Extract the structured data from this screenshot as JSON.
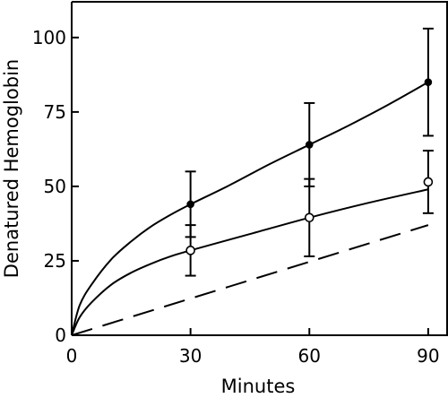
{
  "chart_data": {
    "type": "line",
    "xlabel": "Minutes",
    "ylabel": "Denatured Hemoglobin",
    "xlim": [
      0,
      95
    ],
    "ylim": [
      0,
      112
    ],
    "x_ticks": [
      0,
      30,
      60,
      90
    ],
    "y_ticks": [
      0,
      25,
      50,
      75,
      100
    ],
    "grid": false,
    "series": [
      {
        "marker": "filled-circle",
        "line_style": "solid",
        "points": [
          {
            "x": 30,
            "y": 44,
            "err": 11
          },
          {
            "x": 60,
            "y": 64,
            "err": 14
          },
          {
            "x": 90,
            "y": 85,
            "err": 18
          }
        ],
        "curve": [
          [
            0,
            0
          ],
          [
            2,
            10
          ],
          [
            5,
            17
          ],
          [
            10,
            25.5
          ],
          [
            15,
            31.5
          ],
          [
            20,
            36.5
          ],
          [
            25,
            40.5
          ],
          [
            30,
            44
          ],
          [
            40,
            50.5
          ],
          [
            50,
            57.5
          ],
          [
            60,
            64
          ],
          [
            70,
            70.5
          ],
          [
            80,
            77.5
          ],
          [
            90,
            85
          ]
        ]
      },
      {
        "marker": "open-circle",
        "line_style": "solid",
        "points": [
          {
            "x": 30,
            "y": 28.5,
            "err": 8.5
          },
          {
            "x": 60,
            "y": 39.5,
            "err": 13
          },
          {
            "x": 90,
            "y": 51.5,
            "err": 10.5
          }
        ],
        "curve": [
          [
            0,
            0
          ],
          [
            2,
            6
          ],
          [
            5,
            11
          ],
          [
            10,
            17
          ],
          [
            15,
            21
          ],
          [
            20,
            24
          ],
          [
            25,
            26.5
          ],
          [
            30,
            28.5
          ],
          [
            45,
            34
          ],
          [
            60,
            39.5
          ],
          [
            75,
            44.5
          ],
          [
            90,
            49
          ]
        ]
      },
      {
        "marker": "none",
        "line_style": "dashed",
        "points": [],
        "curve": [
          [
            0,
            0
          ],
          [
            90,
            37
          ]
        ]
      }
    ]
  }
}
